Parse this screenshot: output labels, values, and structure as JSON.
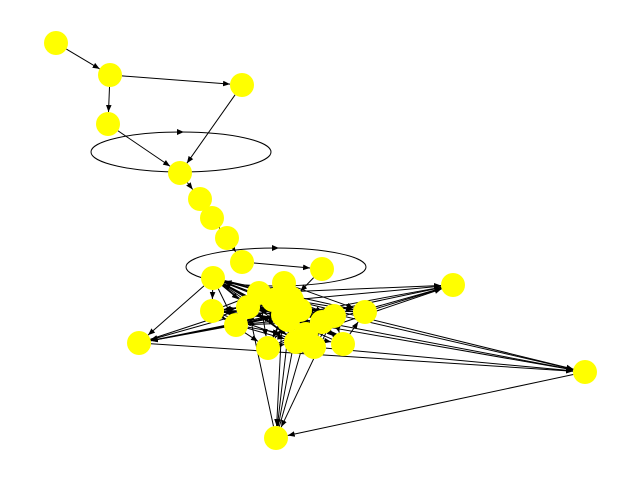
{
  "graph": {
    "directed": true,
    "node_color": "#ffff00",
    "edge_color": "#000000",
    "background": "#ffffff",
    "nodes": [
      {
        "id": "n1"
      },
      {
        "id": "n2"
      },
      {
        "id": "n3"
      },
      {
        "id": "n4"
      },
      {
        "id": "n5"
      },
      {
        "id": "n6"
      },
      {
        "id": "n7"
      },
      {
        "id": "n8"
      },
      {
        "id": "n9"
      },
      {
        "id": "n10"
      },
      {
        "id": "n11"
      },
      {
        "id": "n12"
      },
      {
        "id": "n13"
      },
      {
        "id": "n14"
      },
      {
        "id": "n15"
      },
      {
        "id": "n16"
      },
      {
        "id": "n17"
      },
      {
        "id": "n18"
      },
      {
        "id": "n19"
      },
      {
        "id": "n20"
      },
      {
        "id": "n21"
      },
      {
        "id": "n22"
      },
      {
        "id": "n23"
      },
      {
        "id": "n24"
      },
      {
        "id": "n25"
      },
      {
        "id": "n26"
      },
      {
        "id": "n27"
      },
      {
        "id": "n28"
      },
      {
        "id": "n29"
      },
      {
        "id": "n30"
      },
      {
        "id": "n31"
      },
      {
        "id": "n32"
      },
      {
        "id": "n33"
      },
      {
        "id": "n34"
      }
    ],
    "edges": [
      [
        "n1",
        "n2"
      ],
      [
        "n2",
        "n3"
      ],
      [
        "n2",
        "n4"
      ],
      [
        "n3",
        "n5"
      ],
      [
        "n4",
        "n5"
      ],
      [
        "n5",
        "n5"
      ],
      [
        "n5",
        "n6"
      ],
      [
        "n6",
        "n7"
      ],
      [
        "n7",
        "n8"
      ],
      [
        "n8",
        "n9"
      ],
      [
        "n9",
        "n10"
      ],
      [
        "n10",
        "n10"
      ],
      [
        "n10",
        "n11"
      ],
      [
        "n11",
        "n12"
      ],
      [
        "n11",
        "n13"
      ],
      [
        "n11",
        "n14"
      ],
      [
        "n11",
        "n15"
      ],
      [
        "n11",
        "n16"
      ],
      [
        "n11",
        "n17"
      ],
      [
        "n11",
        "n18"
      ],
      [
        "n11",
        "n19"
      ],
      [
        "n11",
        "n20"
      ],
      [
        "n11",
        "n21"
      ],
      [
        "n11",
        "n22"
      ],
      [
        "n11",
        "n23"
      ],
      [
        "n11",
        "n24"
      ],
      [
        "n11",
        "n25"
      ],
      [
        "n11",
        "n26"
      ],
      [
        "n11",
        "n27"
      ],
      [
        "n11",
        "n28"
      ],
      [
        "n11",
        "n29"
      ],
      [
        "n11",
        "n30"
      ],
      [
        "n11",
        "n31"
      ],
      [
        "n11",
        "n32"
      ],
      [
        "n11",
        "n33"
      ],
      [
        "n11",
        "n34"
      ],
      [
        "n12",
        "n13"
      ],
      [
        "n12",
        "n14"
      ],
      [
        "n12",
        "n16"
      ],
      [
        "n12",
        "n18"
      ],
      [
        "n12",
        "n19"
      ],
      [
        "n12",
        "n21"
      ],
      [
        "n12",
        "n22"
      ],
      [
        "n12",
        "n25"
      ],
      [
        "n12",
        "n27"
      ],
      [
        "n12",
        "n30"
      ],
      [
        "n12",
        "n31"
      ],
      [
        "n12",
        "n32"
      ],
      [
        "n12",
        "n33"
      ],
      [
        "n12",
        "n34"
      ],
      [
        "n13",
        "n14"
      ],
      [
        "n13",
        "n17"
      ],
      [
        "n13",
        "n20"
      ],
      [
        "n13",
        "n22"
      ],
      [
        "n13",
        "n23"
      ],
      [
        "n13",
        "n31"
      ],
      [
        "n13",
        "n32"
      ],
      [
        "n13",
        "n33"
      ],
      [
        "n13",
        "n34"
      ],
      [
        "n14",
        "n15"
      ],
      [
        "n14",
        "n17"
      ],
      [
        "n14",
        "n19"
      ],
      [
        "n14",
        "n21"
      ],
      [
        "n14",
        "n24"
      ],
      [
        "n14",
        "n31"
      ],
      [
        "n14",
        "n32"
      ],
      [
        "n14",
        "n33"
      ],
      [
        "n14",
        "n34"
      ],
      [
        "n15",
        "n16"
      ],
      [
        "n15",
        "n18"
      ],
      [
        "n15",
        "n20"
      ],
      [
        "n15",
        "n23"
      ],
      [
        "n15",
        "n26"
      ],
      [
        "n15",
        "n31"
      ],
      [
        "n15",
        "n32"
      ],
      [
        "n15",
        "n33"
      ],
      [
        "n15",
        "n34"
      ],
      [
        "n16",
        "n17"
      ],
      [
        "n16",
        "n19"
      ],
      [
        "n16",
        "n22"
      ],
      [
        "n16",
        "n28"
      ],
      [
        "n16",
        "n31"
      ],
      [
        "n16",
        "n32"
      ],
      [
        "n16",
        "n33"
      ],
      [
        "n16",
        "n34"
      ],
      [
        "n17",
        "n18"
      ],
      [
        "n17",
        "n21"
      ],
      [
        "n17",
        "n25"
      ],
      [
        "n17",
        "n29"
      ],
      [
        "n17",
        "n31"
      ],
      [
        "n17",
        "n32"
      ],
      [
        "n17",
        "n33"
      ],
      [
        "n17",
        "n34"
      ],
      [
        "n18",
        "n19"
      ],
      [
        "n18",
        "n20"
      ],
      [
        "n18",
        "n24"
      ],
      [
        "n18",
        "n31"
      ],
      [
        "n18",
        "n33"
      ],
      [
        "n19",
        "n20"
      ],
      [
        "n19",
        "n23"
      ],
      [
        "n19",
        "n27"
      ],
      [
        "n19",
        "n32"
      ],
      [
        "n19",
        "n34"
      ],
      [
        "n20",
        "n21"
      ],
      [
        "n20",
        "n26"
      ],
      [
        "n20",
        "n31"
      ],
      [
        "n20",
        "n33"
      ],
      [
        "n21",
        "n22"
      ],
      [
        "n21",
        "n30"
      ],
      [
        "n21",
        "n32"
      ],
      [
        "n21",
        "n34"
      ],
      [
        "n22",
        "n23"
      ],
      [
        "n22",
        "n28"
      ],
      [
        "n22",
        "n31"
      ],
      [
        "n22",
        "n33"
      ],
      [
        "n23",
        "n24"
      ],
      [
        "n23",
        "n29"
      ],
      [
        "n23",
        "n32"
      ],
      [
        "n23",
        "n34"
      ],
      [
        "n24",
        "n25"
      ],
      [
        "n24",
        "n31"
      ],
      [
        "n24",
        "n33"
      ],
      [
        "n25",
        "n26"
      ],
      [
        "n25",
        "n32"
      ],
      [
        "n25",
        "n34"
      ],
      [
        "n26",
        "n27"
      ],
      [
        "n26",
        "n31"
      ],
      [
        "n26",
        "n33"
      ],
      [
        "n27",
        "n28"
      ],
      [
        "n27",
        "n32"
      ],
      [
        "n27",
        "n34"
      ],
      [
        "n28",
        "n29"
      ],
      [
        "n28",
        "n31"
      ],
      [
        "n28",
        "n33"
      ],
      [
        "n29",
        "n30"
      ],
      [
        "n29",
        "n32"
      ],
      [
        "n29",
        "n34"
      ],
      [
        "n30",
        "n31"
      ],
      [
        "n30",
        "n33"
      ],
      [
        "n34",
        "n31"
      ],
      [
        "n33",
        "n31"
      ],
      [
        "n32",
        "n34"
      ],
      [
        "n31",
        "n12"
      ],
      [
        "n33",
        "n13"
      ]
    ]
  }
}
